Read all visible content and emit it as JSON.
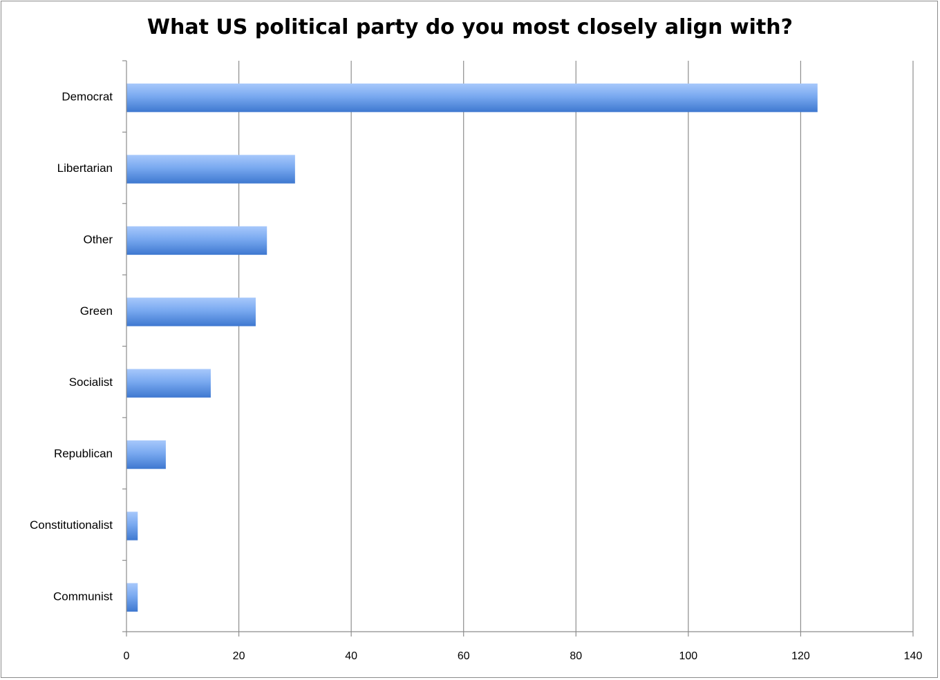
{
  "chart_data": {
    "type": "bar",
    "orientation": "horizontal",
    "title": "What US political party do you most closely align with?",
    "categories": [
      "Democrat",
      "Libertarian",
      "Other",
      "Green",
      "Socialist",
      "Republican",
      "Constitutionalist",
      "Communist"
    ],
    "values": [
      123,
      30,
      25,
      23,
      15,
      7,
      2,
      2
    ],
    "xlim": [
      0,
      140
    ],
    "x_ticks": [
      "0",
      "20",
      "40",
      "60",
      "80",
      "100",
      "120",
      "140"
    ],
    "grid": "vertical",
    "legend": "none",
    "bar_color": "#5b8fe0"
  }
}
